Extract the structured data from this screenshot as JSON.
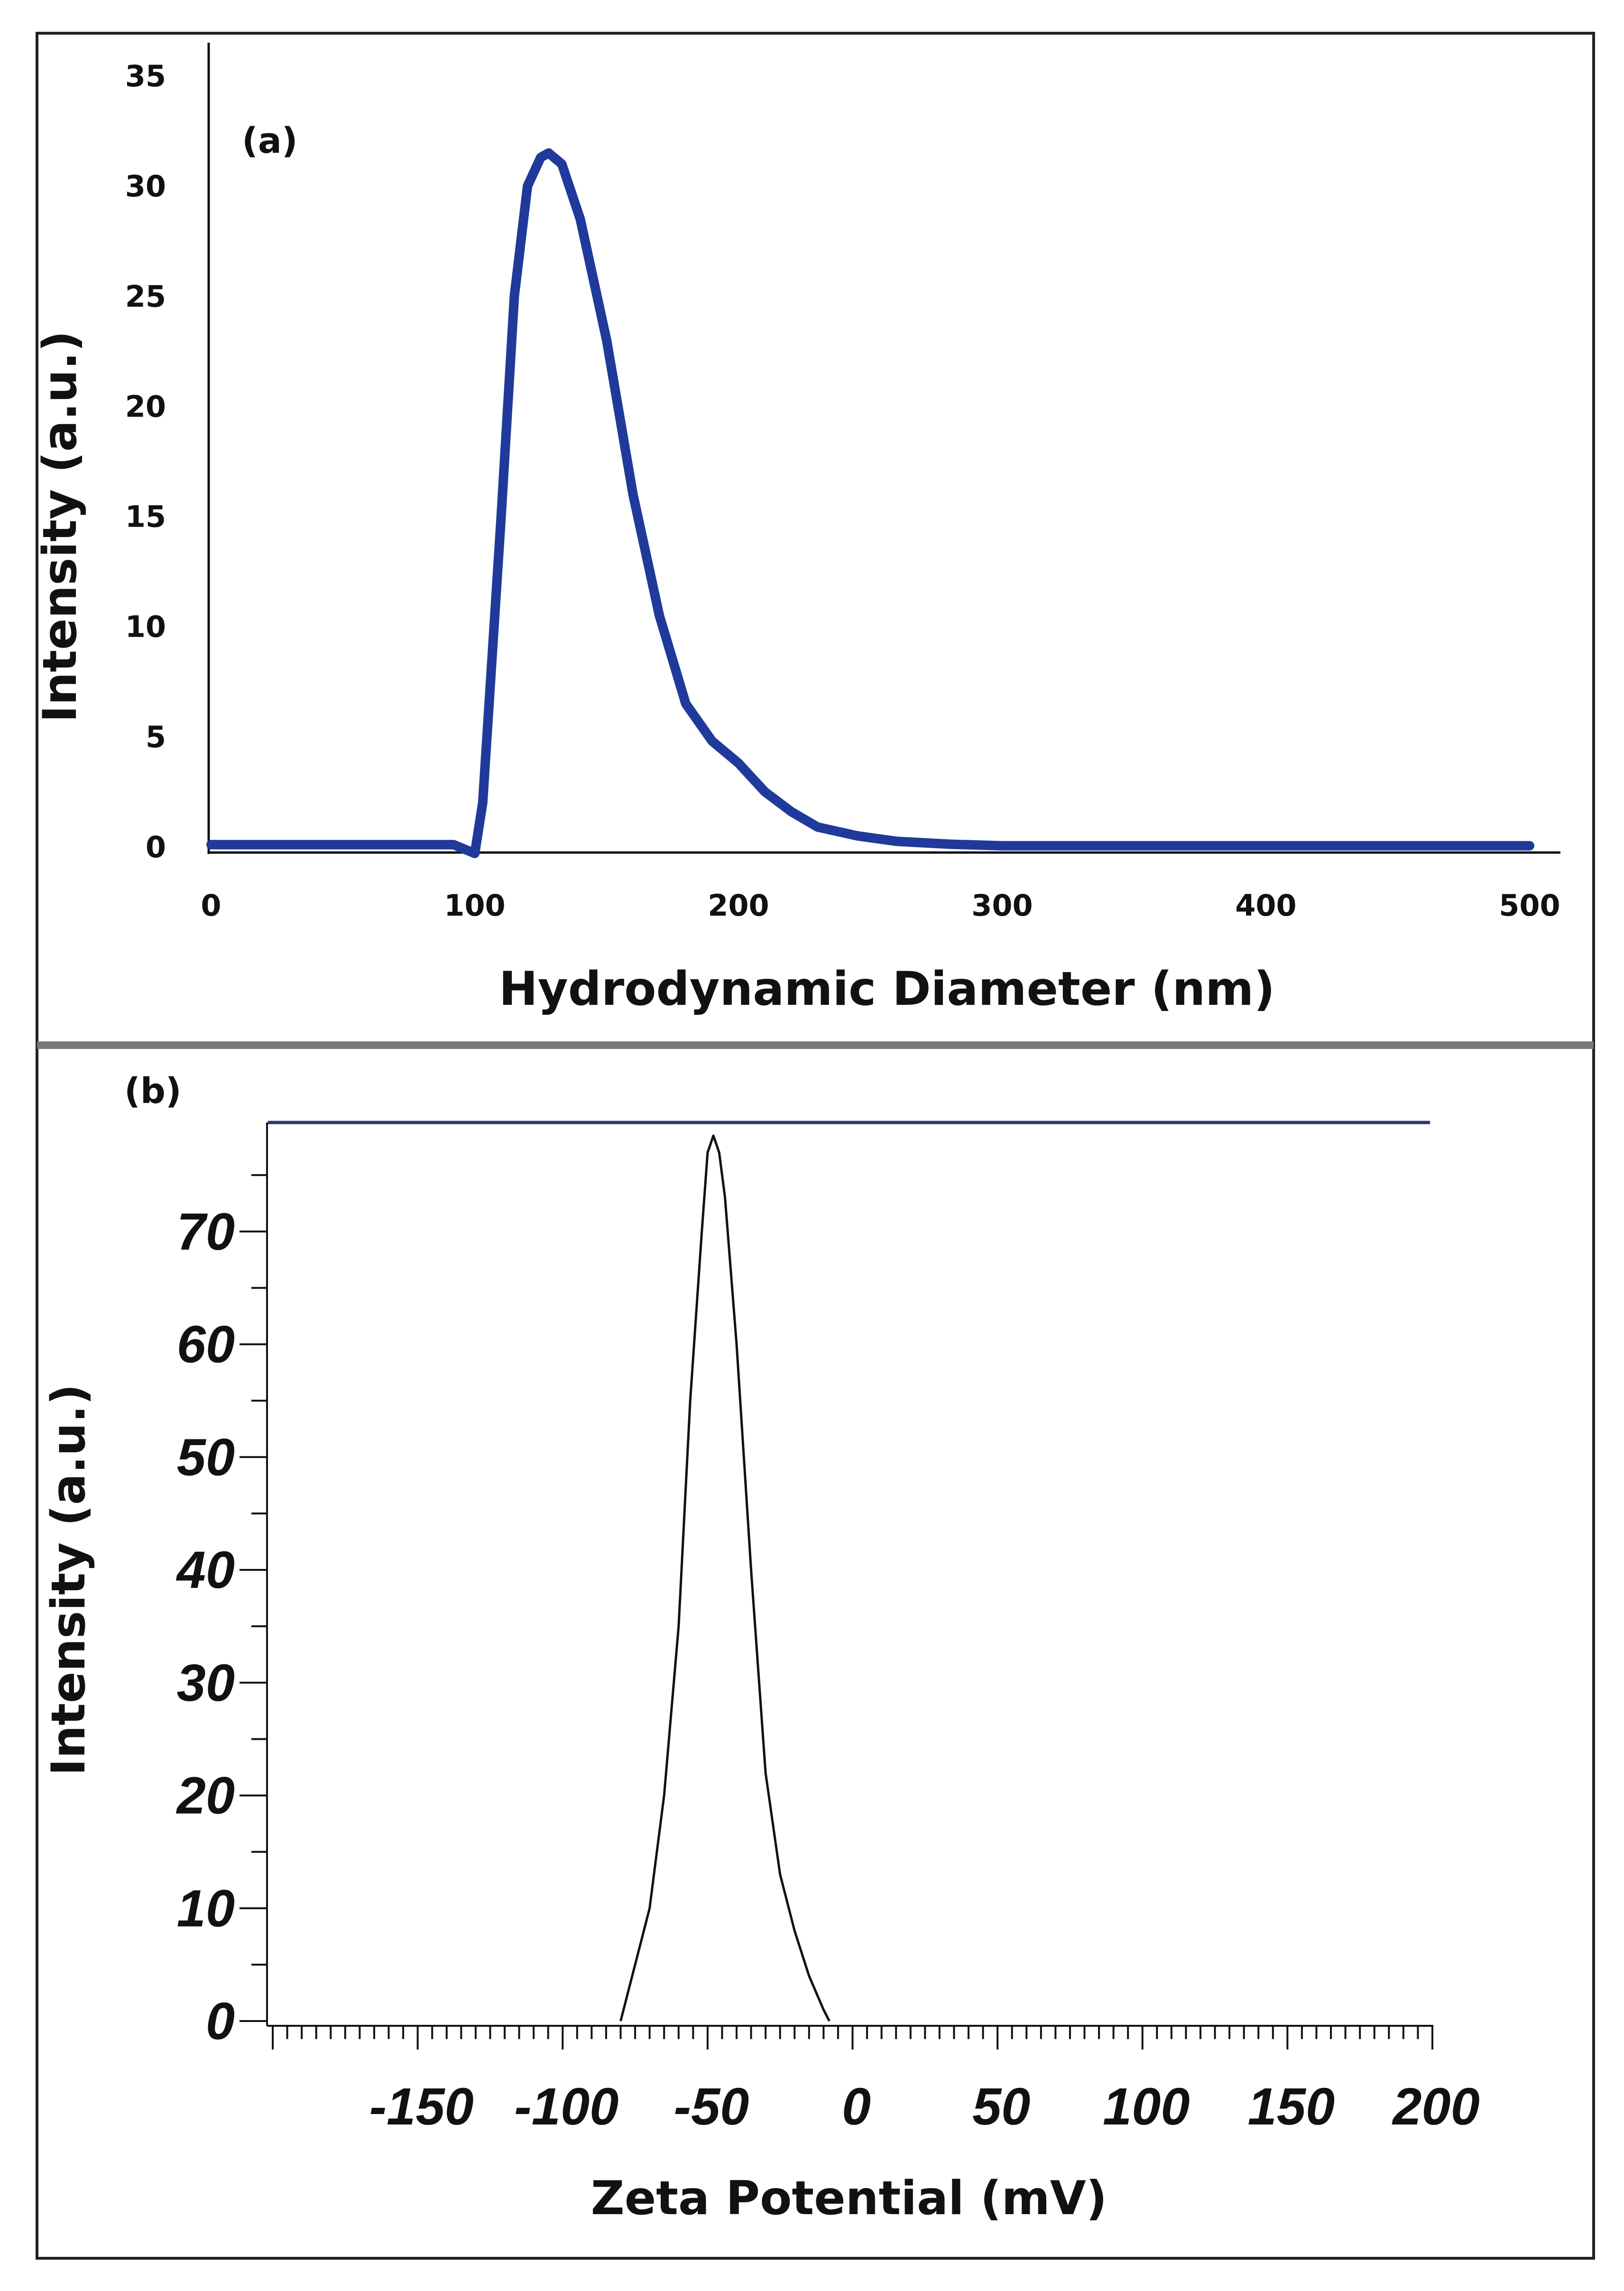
{
  "chart_data": [
    {
      "panel": "(a)",
      "type": "line",
      "xlabel": "Hydrodynamic Diameter (nm)",
      "ylabel": "Intensity (a.u.)",
      "xlim": [
        0,
        500
      ],
      "ylim": [
        0,
        35
      ],
      "xticks": [
        "0",
        "100",
        "200",
        "300",
        "400",
        "500"
      ],
      "yticks": [
        "0",
        "5",
        "10",
        "15",
        "20",
        "25",
        "30",
        "35"
      ],
      "grid": false,
      "line_color": "#1f3a9a",
      "x": [
        0,
        50,
        85,
        92,
        100,
        103,
        110,
        115,
        120,
        125,
        128,
        133,
        140,
        150,
        160,
        170,
        180,
        190,
        200,
        210,
        220,
        230,
        245,
        260,
        280,
        300,
        350,
        400,
        450,
        500
      ],
      "y": [
        0.1,
        0.1,
        0.1,
        0.1,
        -0.3,
        2,
        15,
        25,
        30,
        31.3,
        31.5,
        31,
        28.5,
        23,
        16,
        10.5,
        6.5,
        4.8,
        3.8,
        2.5,
        1.6,
        0.9,
        0.5,
        0.25,
        0.12,
        0.05,
        0.05,
        0.05,
        0.05,
        0.05
      ]
    },
    {
      "panel": "(b)",
      "type": "line",
      "xlabel": "Zeta Potential (mV)",
      "ylabel": "Intensity (a.u.)",
      "xlim": [
        -200,
        200
      ],
      "ylim": [
        0,
        80
      ],
      "xticks": [
        "-150",
        "-100",
        "-50",
        "0",
        "50",
        "100",
        "150",
        "200"
      ],
      "yticks": [
        "0",
        "10",
        "20",
        "30",
        "40",
        "50",
        "60",
        "70"
      ],
      "grid": false,
      "line_color": "#111111",
      "top_line_color": "#2a3a66",
      "x": [
        -80,
        -77,
        -73,
        -70,
        -65,
        -60,
        -56,
        -52,
        -50,
        -48,
        -46,
        -44,
        -40,
        -35,
        -30,
        -25,
        -20,
        -15,
        -10,
        -8
      ],
      "y": [
        0,
        3,
        7,
        10,
        20,
        35,
        55,
        70,
        77,
        78.5,
        77,
        73,
        60,
        40,
        22,
        13,
        8,
        4,
        1,
        0
      ]
    }
  ]
}
